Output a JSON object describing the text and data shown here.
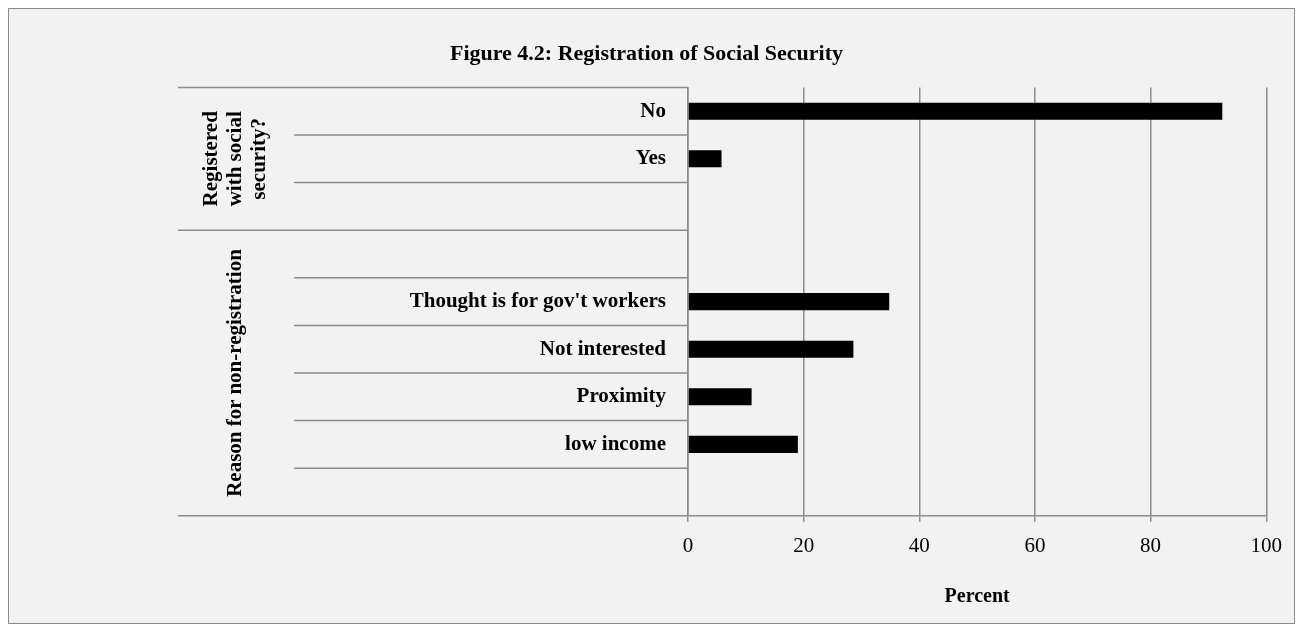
{
  "chart_data": {
    "type": "bar",
    "orientation": "horizontal",
    "title": "Figure 4.2: Registration of Social Security",
    "xlabel": "Percent",
    "categories": [
      "No",
      "Yes",
      null,
      null,
      "Thought is for gov't workers",
      "Not interested",
      "Proximity",
      "low income",
      null
    ],
    "values": [
      92.4,
      5.8,
      null,
      null,
      34.8,
      28.6,
      11.0,
      19.0,
      null
    ],
    "color": "#000000",
    "annotations": [
      "Registered with social security?",
      "Reason for non-registration"
    ],
    "xlim": [
      0,
      100
    ],
    "xticks": [
      0,
      20,
      40,
      60,
      80,
      100
    ],
    "grid": "x"
  }
}
